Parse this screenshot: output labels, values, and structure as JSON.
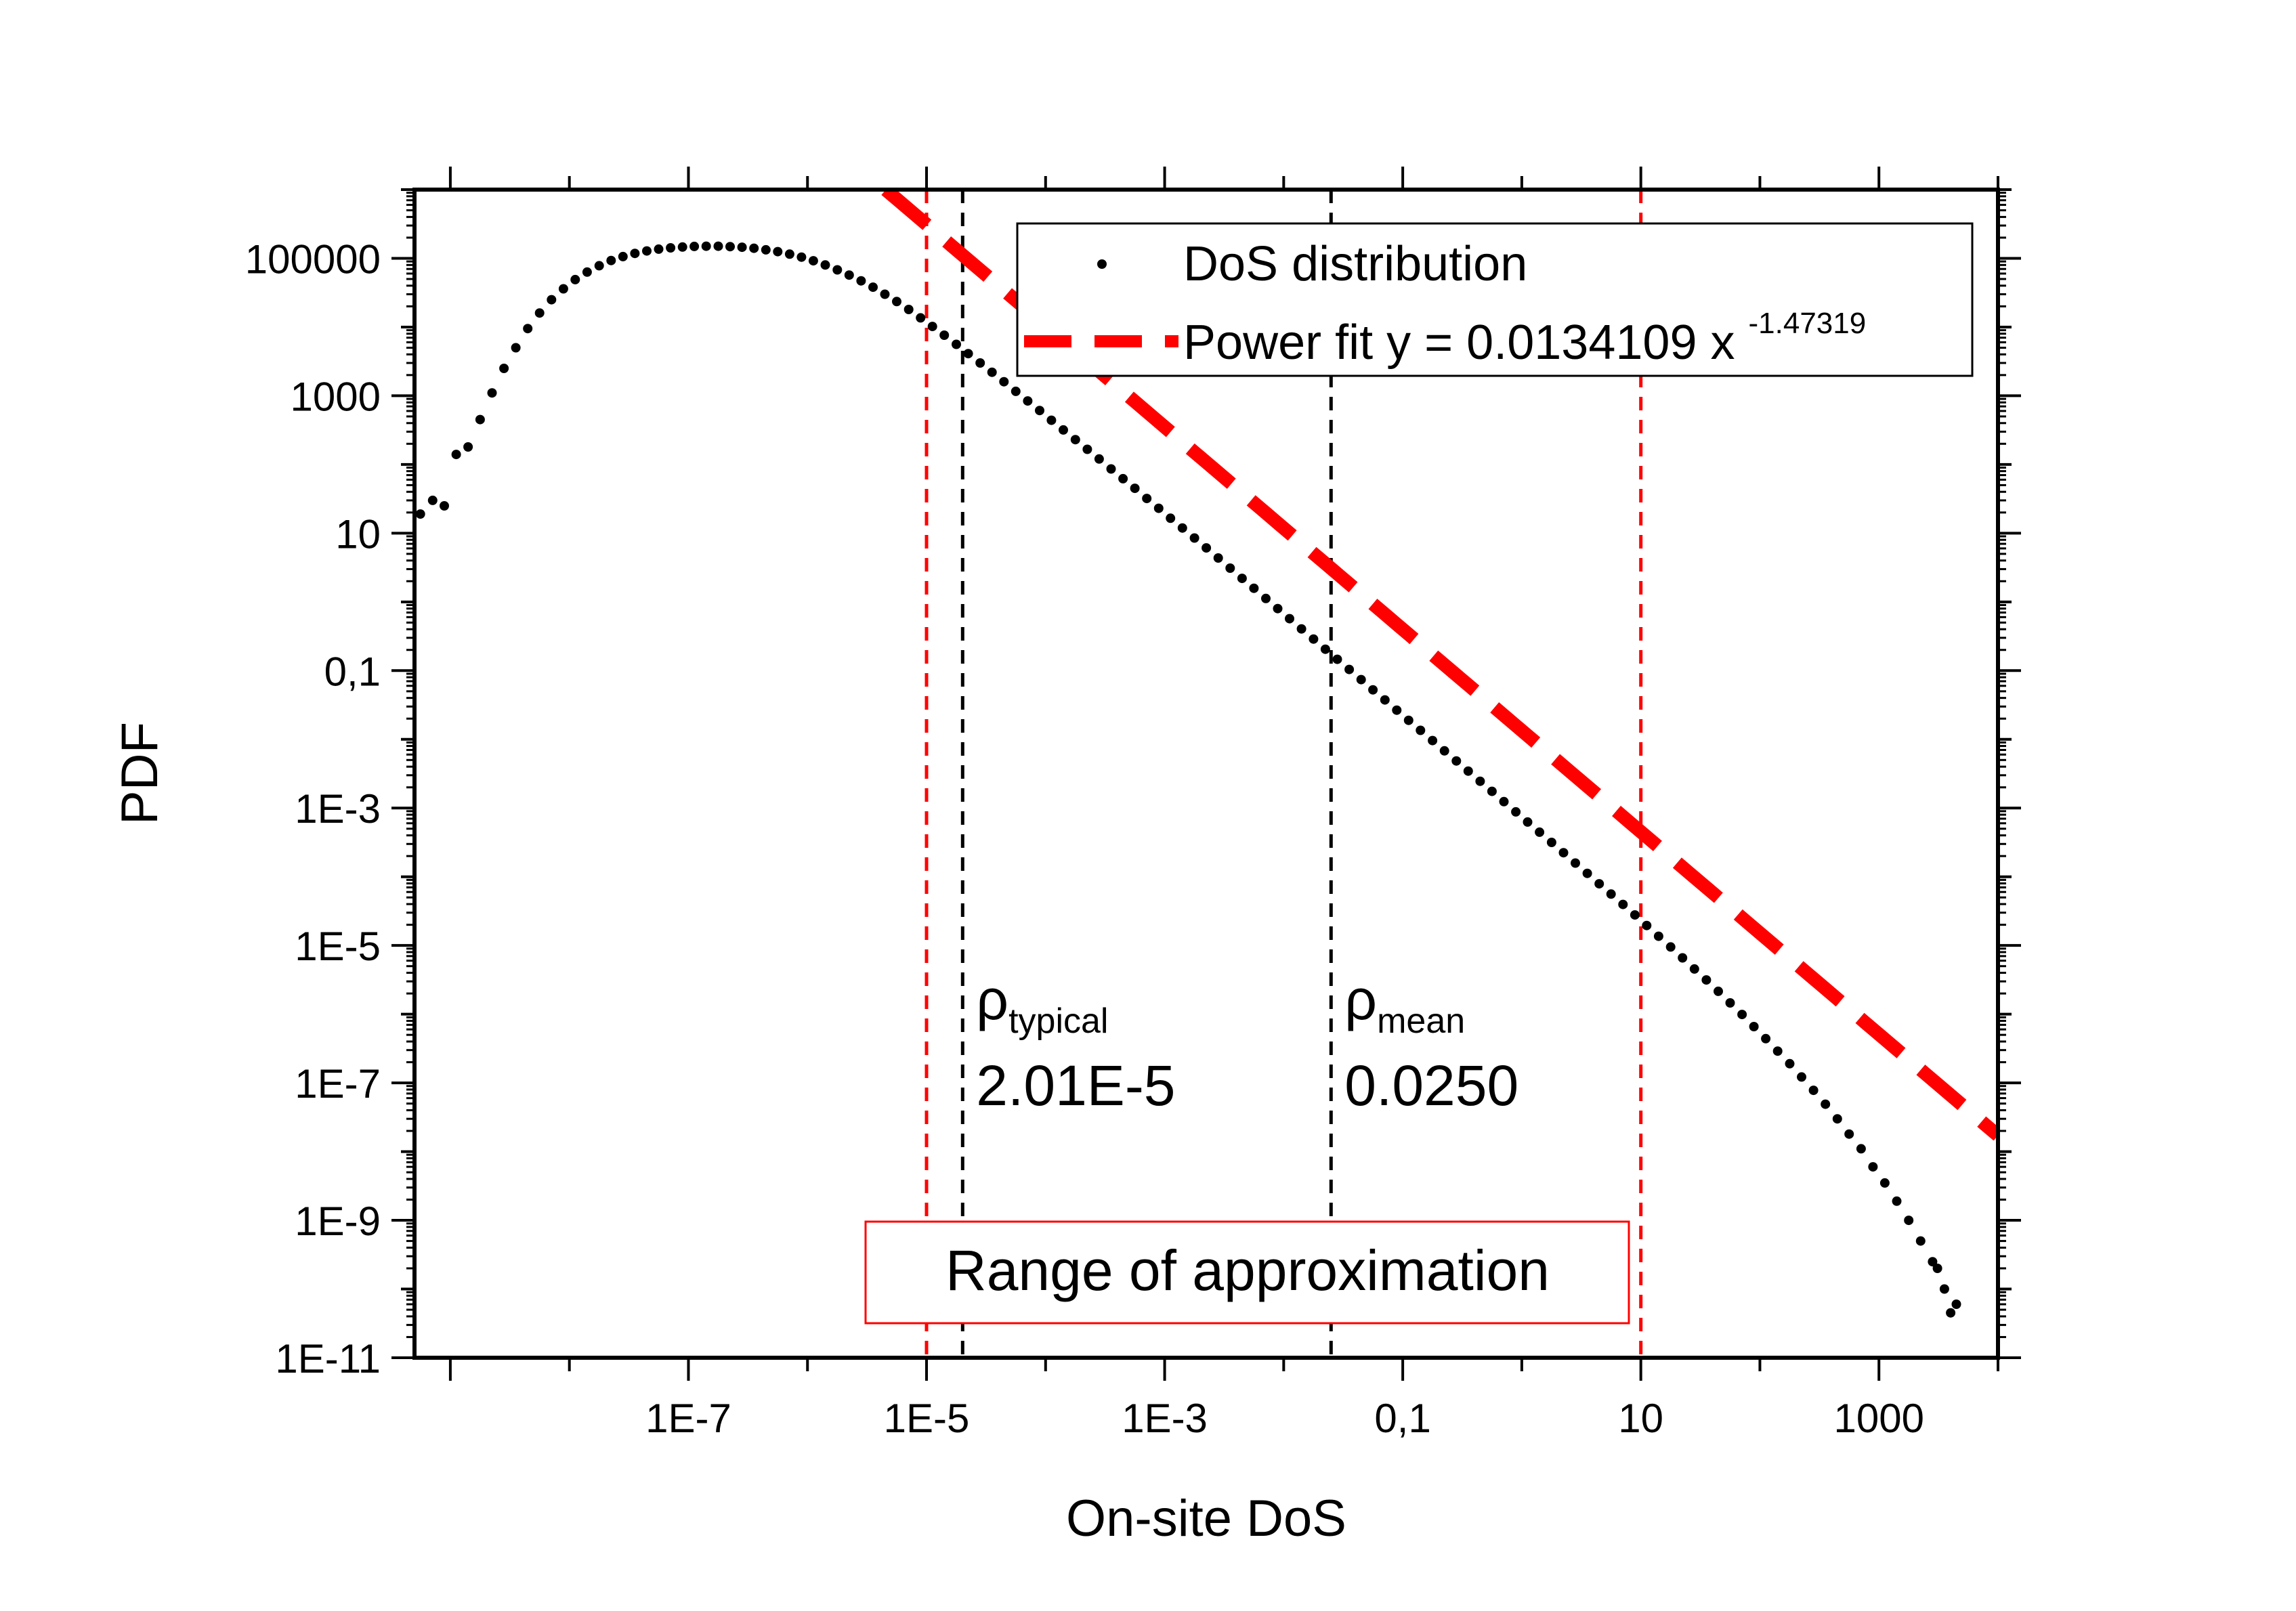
{
  "chart_data": {
    "type": "scatter",
    "title": "",
    "xlabel": "On-site DoS",
    "ylabel": "PDF",
    "x_scale": "log",
    "y_scale": "log",
    "xlim": [
      5e-10,
      10000
    ],
    "ylim": [
      1e-11,
      1000000
    ],
    "x_tick_labels": [
      {
        "value": 1e-07,
        "label": "1E-7"
      },
      {
        "value": 1e-05,
        "label": "1E-5"
      },
      {
        "value": 0.001,
        "label": "1E-3"
      },
      {
        "value": 0.1,
        "label": "0,1"
      },
      {
        "value": 10,
        "label": "10"
      },
      {
        "value": 1000,
        "label": "1000"
      }
    ],
    "y_tick_labels": [
      {
        "value": 100000,
        "label": "100000"
      },
      {
        "value": 1000,
        "label": "1000"
      },
      {
        "value": 10,
        "label": "10"
      },
      {
        "value": 0.1,
        "label": "0,1"
      },
      {
        "value": 0.001,
        "label": "1E-3"
      },
      {
        "value": 1e-05,
        "label": "1E-5"
      },
      {
        "value": 1e-07,
        "label": "1E-7"
      },
      {
        "value": 1e-09,
        "label": "1E-9"
      },
      {
        "value": 1e-11,
        "label": "1E-11"
      }
    ],
    "grid": false,
    "legend_position": "top-right",
    "series": [
      {
        "name": "DoS distribution",
        "style": "dots",
        "color": "#000000",
        "points": [
          [
            5.6e-10,
            19
          ],
          [
            7.1e-10,
            30
          ],
          [
            8.9e-10,
            25
          ],
          [
            1.12e-09,
            140
          ],
          [
            1.41e-09,
            180
          ],
          [
            1.78e-09,
            450
          ],
          [
            2.24e-09,
            1100
          ],
          [
            2.82e-09,
            2500
          ],
          [
            3.55e-09,
            5000
          ],
          [
            4.47e-09,
            9500
          ],
          [
            5.62e-09,
            16000
          ],
          [
            7.08e-09,
            25000
          ],
          [
            8.91e-09,
            36000
          ],
          [
            1.12e-08,
            49000
          ],
          [
            1.41e-08,
            63000
          ],
          [
            1.78e-08,
            78000
          ],
          [
            2.24e-08,
            93000
          ],
          [
            2.82e-08,
            106000
          ],
          [
            3.55e-08,
            118000
          ],
          [
            4.47e-08,
            128000
          ],
          [
            5.62e-08,
            136000
          ],
          [
            7.08e-08,
            142000
          ],
          [
            8.91e-08,
            146000
          ],
          [
            1.12e-07,
            149000
          ],
          [
            1.41e-07,
            150000
          ],
          [
            1.78e-07,
            150000
          ],
          [
            2.24e-07,
            148000
          ],
          [
            2.82e-07,
            145000
          ],
          [
            3.55e-07,
            140000
          ],
          [
            4.47e-07,
            133000
          ],
          [
            5.62e-07,
            125000
          ],
          [
            7.08e-07,
            115000
          ],
          [
            8.91e-07,
            104000
          ],
          [
            1.12e-06,
            92000
          ],
          [
            1.41e-06,
            80000
          ],
          [
            1.78e-06,
            68000
          ],
          [
            2.24e-06,
            57000
          ],
          [
            2.82e-06,
            47000
          ],
          [
            3.55e-06,
            38000
          ],
          [
            4.47e-06,
            30000
          ],
          [
            5.62e-06,
            23500
          ],
          [
            7.08e-06,
            18000
          ],
          [
            8.91e-06,
            13600
          ],
          [
            1.12e-05,
            10200
          ],
          [
            1.41e-05,
            7600
          ],
          [
            1.78e-05,
            5600
          ],
          [
            2.24e-05,
            4100
          ],
          [
            2.82e-05,
            3000
          ],
          [
            3.55e-05,
            2200
          ],
          [
            4.47e-05,
            1600
          ],
          [
            5.62e-05,
            1160
          ],
          [
            7.08e-05,
            840
          ],
          [
            8.91e-05,
            610
          ],
          [
            0.000112,
            440
          ],
          [
            0.000141,
            318
          ],
          [
            0.000178,
            230
          ],
          [
            0.000224,
            166
          ],
          [
            0.000282,
            120
          ],
          [
            0.000355,
            86
          ],
          [
            0.000447,
            62
          ],
          [
            0.000562,
            45
          ],
          [
            0.000708,
            32
          ],
          [
            0.000891,
            23
          ],
          [
            0.00112,
            16.5
          ],
          [
            0.00141,
            11.9
          ],
          [
            0.00178,
            8.5
          ],
          [
            0.00224,
            6.1
          ],
          [
            0.00282,
            4.35
          ],
          [
            0.00355,
            3.1
          ],
          [
            0.00447,
            2.2
          ],
          [
            0.00562,
            1.58
          ],
          [
            0.00708,
            1.12
          ],
          [
            0.00891,
            0.8
          ],
          [
            0.0112,
            0.57
          ],
          [
            0.0141,
            0.405
          ],
          [
            0.0178,
            0.288
          ],
          [
            0.0224,
            0.205
          ],
          [
            0.0282,
            0.146
          ],
          [
            0.0355,
            0.104
          ],
          [
            0.0447,
            0.074
          ],
          [
            0.0562,
            0.0525
          ],
          [
            0.0708,
            0.0374
          ],
          [
            0.0891,
            0.0266
          ],
          [
            0.112,
            0.0189
          ],
          [
            0.141,
            0.0135
          ],
          [
            0.178,
            0.0096
          ],
          [
            0.224,
            0.0068
          ],
          [
            0.282,
            0.00485
          ],
          [
            0.355,
            0.00345
          ],
          [
            0.447,
            0.00245
          ],
          [
            0.562,
            0.00175
          ],
          [
            0.708,
            0.00124
          ],
          [
            0.891,
            0.00088
          ],
          [
            1.12,
            0.000625
          ],
          [
            1.41,
            0.000445
          ],
          [
            1.78,
            0.000316
          ],
          [
            2.24,
            0.000224
          ],
          [
            2.82,
            0.000158
          ],
          [
            3.55,
            0.000112
          ],
          [
            4.47,
            7.9e-05
          ],
          [
            5.62,
            5.6e-05
          ],
          [
            7.08,
            3.95e-05
          ],
          [
            8.91,
            2.78e-05
          ],
          [
            11.2,
            1.95e-05
          ],
          [
            14.1,
            1.36e-05
          ],
          [
            17.8,
            9.5e-06
          ],
          [
            22.4,
            6.6e-06
          ],
          [
            28.2,
            4.55e-06
          ],
          [
            35.5,
            3.15e-06
          ],
          [
            44.7,
            2.15e-06
          ],
          [
            56.2,
            1.46e-06
          ],
          [
            70.8,
            9.9e-07
          ],
          [
            89.1,
            6.6e-07
          ],
          [
            112,
            4.4e-07
          ],
          [
            141,
            2.9e-07
          ],
          [
            178,
            1.9e-07
          ],
          [
            224,
            1.22e-07
          ],
          [
            282,
            7.8e-08
          ],
          [
            355,
            4.9e-08
          ],
          [
            447,
            3e-08
          ],
          [
            562,
            1.8e-08
          ],
          [
            708,
            1.1e-08
          ],
          [
            891,
            6e-09
          ],
          [
            1120,
            3.5e-09
          ],
          [
            1410,
            1.9e-09
          ],
          [
            1780,
            1e-09
          ],
          [
            2240,
            5e-10
          ],
          [
            2820,
            2.5e-10
          ],
          [
            3550,
            1e-10
          ],
          [
            4470,
            6e-11
          ],
          [
            3100,
            2e-10
          ],
          [
            4000,
            4.5e-11
          ]
        ]
      },
      {
        "name": "Power fit",
        "label_main": "Power fit y = 0.0134109 x",
        "label_exponent": "-1.47319",
        "style": "dashed",
        "color": "#ff0000",
        "coefficient": 0.0134109,
        "exponent": -1.47319,
        "x_range": [
          1.4e-06,
          10000
        ]
      }
    ],
    "vertical_lines": [
      {
        "x": 1e-05,
        "color": "#ff0000"
      },
      {
        "x": 2.01e-05,
        "color": "#000000"
      },
      {
        "x": 0.025,
        "color": "#000000"
      },
      {
        "x": 10,
        "color": "#ff0000"
      }
    ],
    "annotations": [
      {
        "symbol": "ρ",
        "subscript": "typical",
        "value": "2.01E-5",
        "x": 2.01e-05
      },
      {
        "symbol": "ρ",
        "subscript": "mean",
        "value": "0.0250",
        "x": 0.025
      }
    ],
    "range_box": {
      "label": "Range of approximation",
      "border_color": "#ff0000"
    }
  }
}
